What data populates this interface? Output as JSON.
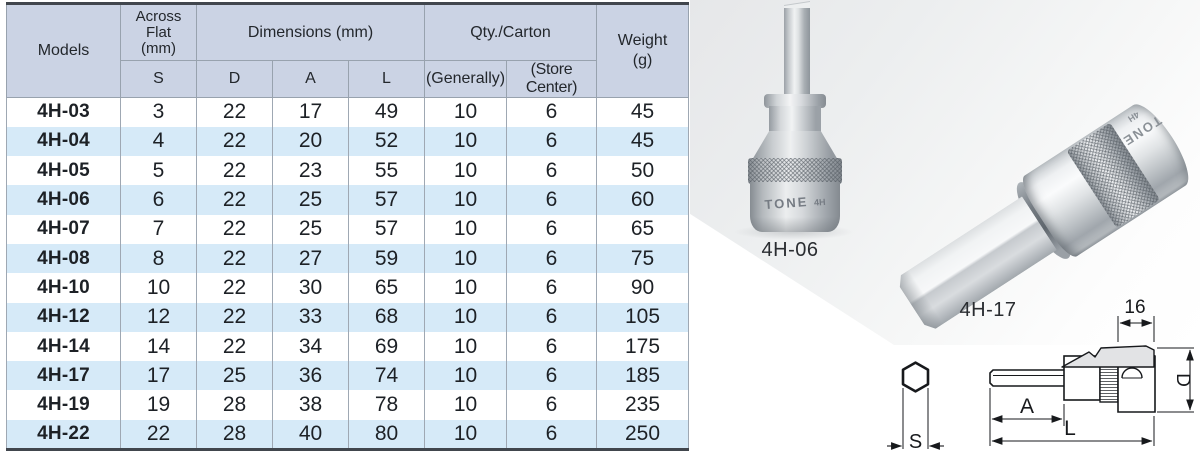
{
  "table": {
    "header": {
      "models": "Models",
      "across_flat_lines": [
        "Across",
        "Flat",
        "(mm)"
      ],
      "dimensions": "Dimensions (mm)",
      "qty_carton": "Qty./Carton",
      "weight_lines": [
        "Weight",
        "(g)"
      ],
      "sub_s": "S",
      "sub_d": "D",
      "sub_a": "A",
      "sub_l": "L",
      "sub_generally": "(Generally)",
      "sub_store": "(Store Center)"
    },
    "rows": [
      {
        "model": "4H-03",
        "s": "3",
        "d": "22",
        "a": "17",
        "l": "49",
        "qty_generally": "10",
        "qty_store": "6",
        "weight": "45"
      },
      {
        "model": "4H-04",
        "s": "4",
        "d": "22",
        "a": "20",
        "l": "52",
        "qty_generally": "10",
        "qty_store": "6",
        "weight": "45"
      },
      {
        "model": "4H-05",
        "s": "5",
        "d": "22",
        "a": "23",
        "l": "55",
        "qty_generally": "10",
        "qty_store": "6",
        "weight": "50"
      },
      {
        "model": "4H-06",
        "s": "6",
        "d": "22",
        "a": "25",
        "l": "57",
        "qty_generally": "10",
        "qty_store": "6",
        "weight": "60"
      },
      {
        "model": "4H-07",
        "s": "7",
        "d": "22",
        "a": "25",
        "l": "57",
        "qty_generally": "10",
        "qty_store": "6",
        "weight": "65"
      },
      {
        "model": "4H-08",
        "s": "8",
        "d": "22",
        "a": "27",
        "l": "59",
        "qty_generally": "10",
        "qty_store": "6",
        "weight": "75"
      },
      {
        "model": "4H-10",
        "s": "10",
        "d": "22",
        "a": "30",
        "l": "65",
        "qty_generally": "10",
        "qty_store": "6",
        "weight": "90"
      },
      {
        "model": "4H-12",
        "s": "12",
        "d": "22",
        "a": "33",
        "l": "68",
        "qty_generally": "10",
        "qty_store": "6",
        "weight": "105"
      },
      {
        "model": "4H-14",
        "s": "14",
        "d": "22",
        "a": "34",
        "l": "69",
        "qty_generally": "10",
        "qty_store": "6",
        "weight": "175"
      },
      {
        "model": "4H-17",
        "s": "17",
        "d": "25",
        "a": "36",
        "l": "74",
        "qty_generally": "10",
        "qty_store": "6",
        "weight": "185"
      },
      {
        "model": "4H-19",
        "s": "19",
        "d": "28",
        "a": "38",
        "l": "78",
        "qty_generally": "10",
        "qty_store": "6",
        "weight": "235"
      },
      {
        "model": "4H-22",
        "s": "22",
        "d": "28",
        "a": "40",
        "l": "80",
        "qty_generally": "10",
        "qty_store": "6",
        "weight": "250"
      }
    ],
    "colors": {
      "header_bg": "#cbd3e4",
      "row_alt_bg": "#d6eaf8",
      "grid_line": "#98a2ae",
      "frame_line": "#41464d"
    }
  },
  "photos": {
    "small": {
      "label": "4H-06",
      "engraving": "TONE",
      "engraving_suffix": "4H"
    },
    "large": {
      "label": "4H-17",
      "engraving": "TONE",
      "engraving_suffix": "4H"
    }
  },
  "diagram": {
    "dim_16": "16",
    "dim_d": "D",
    "dim_a": "A",
    "dim_l": "L",
    "dim_s": "S"
  }
}
